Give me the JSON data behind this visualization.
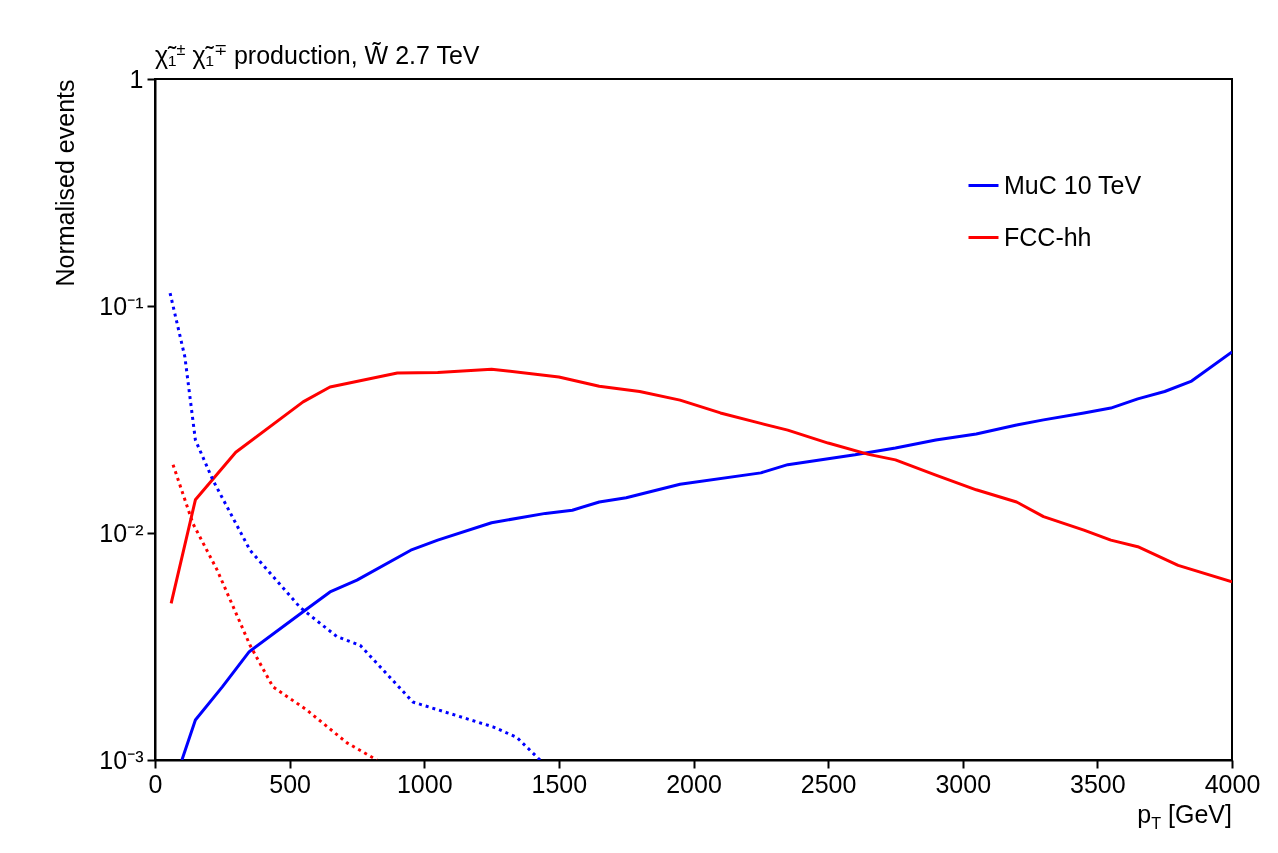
{
  "chart_data": {
    "type": "line",
    "title": "χ̃₁$^{±}$ χ̃₁$^{∓}$ production, W̃ 2.7 TeV",
    "xlabel": "p$_{T}$ [GeV]",
    "ylabel": "Normalised events",
    "log": "y",
    "grid": false,
    "legend": "top right",
    "xlim": [
      0,
      4000
    ],
    "xticks": [
      0,
      500,
      1000,
      1500,
      2000,
      2500,
      3000,
      3500,
      4000
    ],
    "ylim": [
      0.001,
      1
    ],
    "yticks": [
      {
        "value": 0.001,
        "label": "10⁻³"
      },
      {
        "value": 0.01,
        "label": "10⁻²"
      },
      {
        "value": 0.1,
        "label": "10⁻¹"
      },
      1
    ],
    "series": [
      {
        "name": "MuC 10 TeV",
        "color": "#0000ff",
        "line_style": "solid",
        "x": [
          100,
          150,
          250,
          350,
          550,
          650,
          750,
          950,
          1050,
          1250,
          1450,
          1550,
          1650,
          1750,
          1950,
          2250,
          2350,
          2600,
          2750,
          2900,
          3050,
          3200,
          3300,
          3450,
          3550,
          3650,
          3750,
          3850,
          4000
        ],
        "values": [
          0.001,
          0.0015,
          0.0021,
          0.003,
          0.0045,
          0.0055,
          0.0062,
          0.0084,
          0.0093,
          0.0111,
          0.0122,
          0.0126,
          0.0137,
          0.0143,
          0.0164,
          0.0184,
          0.02,
          0.0221,
          0.0237,
          0.0257,
          0.0273,
          0.0299,
          0.0315,
          0.0338,
          0.0355,
          0.039,
          0.042,
          0.0467,
          0.0627
        ]
      },
      {
        "name": "FCC-hh",
        "color": "#ff0000",
        "line_style": "solid",
        "x": [
          60,
          150,
          300,
          550,
          650,
          900,
          1050,
          1250,
          1500,
          1650,
          1800,
          1950,
          2100,
          2250,
          2350,
          2500,
          2650,
          2750,
          2900,
          3050,
          3200,
          3300,
          3450,
          3550,
          3650,
          3800,
          4000
        ],
        "values": [
          0.0049,
          0.014,
          0.0227,
          0.0378,
          0.044,
          0.0507,
          0.051,
          0.0527,
          0.0487,
          0.0443,
          0.042,
          0.0385,
          0.0338,
          0.0304,
          0.0284,
          0.0249,
          0.0222,
          0.021,
          0.018,
          0.0155,
          0.0137,
          0.0118,
          0.0103,
          0.0093,
          0.0087,
          0.0072,
          0.0061
        ]
      },
      {
        "color": "#0000ff",
        "line_style": "dotted",
        "x": [
          56,
          111,
          150,
          215,
          353,
          539,
          675,
          762,
          958,
          1255,
          1343,
          1430
        ],
        "values": [
          0.114,
          0.0596,
          0.0257,
          0.0171,
          0.0084,
          0.0047,
          0.0035,
          0.0032,
          0.0018,
          0.0014,
          0.00126,
          0.001
        ]
      },
      {
        "color": "#ff0000",
        "line_style": "dotted",
        "x": [
          67,
          141,
          230,
          353,
          438,
          564,
          713,
          824
        ],
        "values": [
          0.02,
          0.011,
          0.0069,
          0.0032,
          0.0021,
          0.00166,
          0.00119,
          0.001
        ]
      }
    ]
  }
}
